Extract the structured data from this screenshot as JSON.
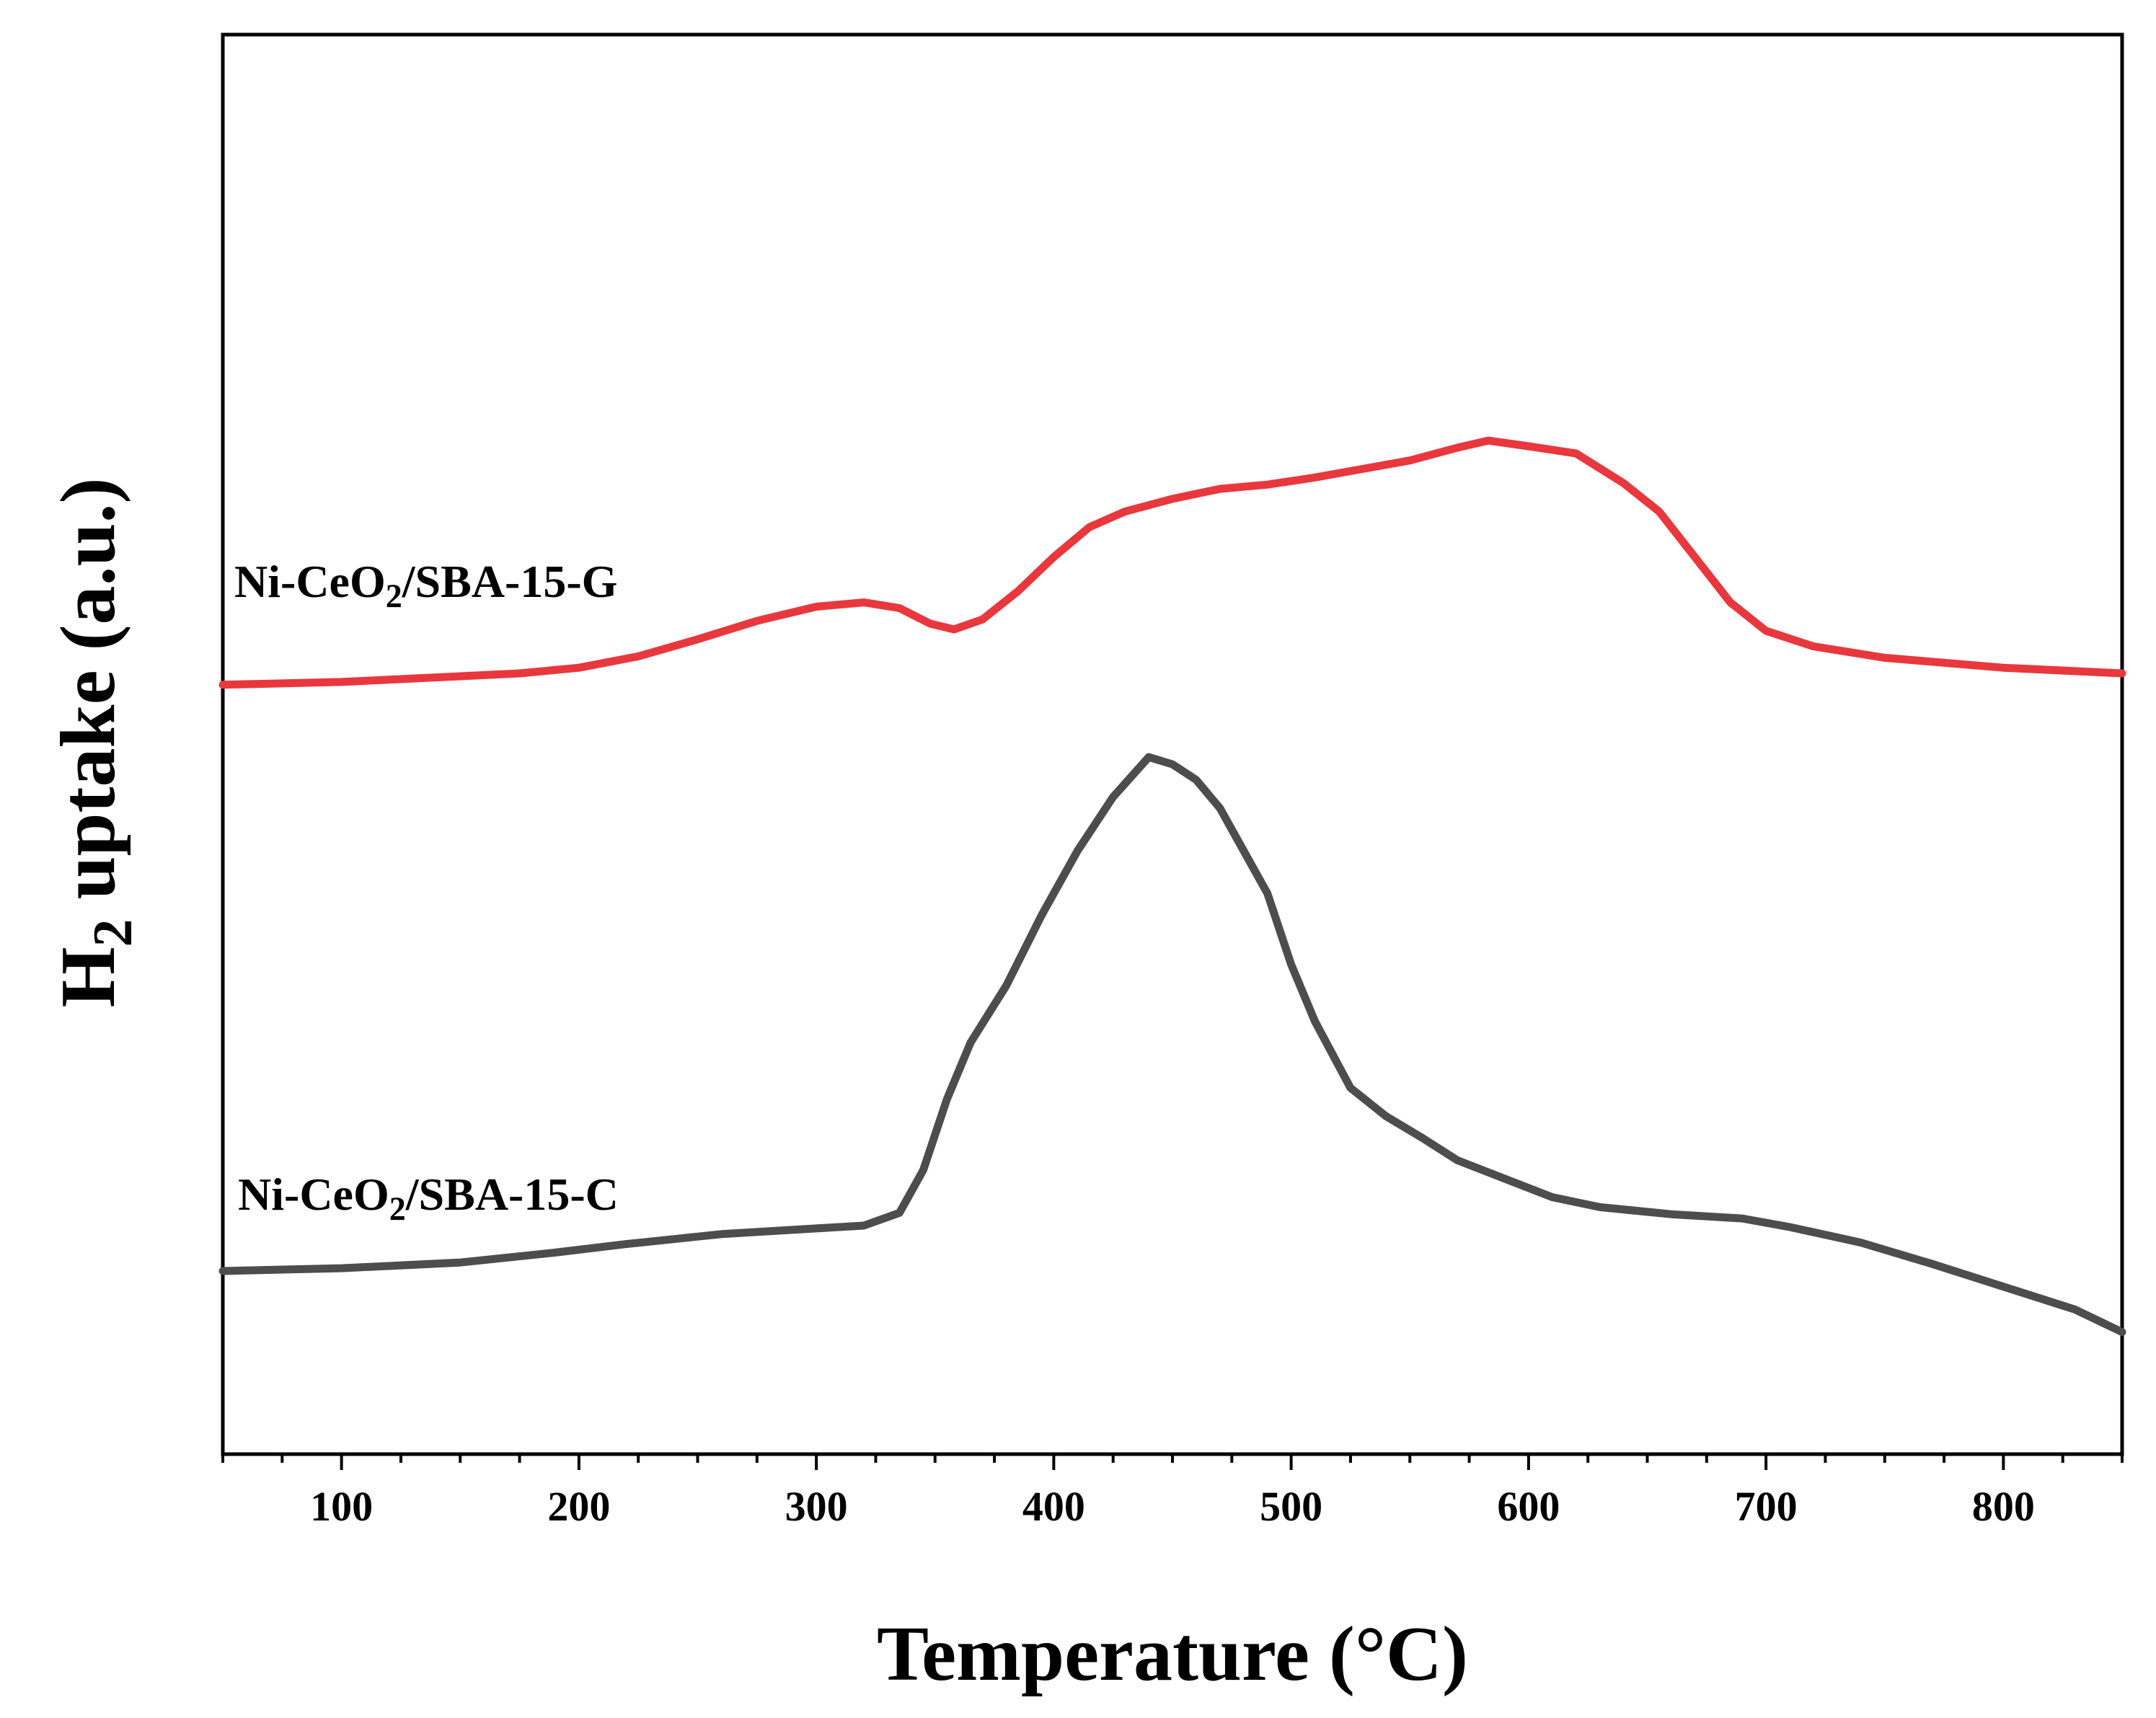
{
  "chart_data": {
    "type": "line",
    "title": "",
    "xlabel": "Temperature (°C)",
    "ylabel_parts": {
      "pre": "H",
      "sub": "2",
      "post": " uptake (a.u.)"
    },
    "xlim": [
      50,
      850
    ],
    "ylim": [
      0,
      100
    ],
    "x_ticks": [
      100,
      200,
      300,
      400,
      500,
      600,
      700,
      800
    ],
    "y_ticks_shown": false,
    "grid": false,
    "series": [
      {
        "name": "Ni-CeO2/SBA-15-G",
        "label_parts": {
          "pre": "Ni-CeO",
          "sub": "2",
          "post": "/SBA-15-G"
        },
        "color": "#e8383d",
        "points": [
          [
            50,
            54.2
          ],
          [
            100,
            54.4
          ],
          [
            150,
            54.8
          ],
          [
            175,
            55.0
          ],
          [
            200,
            55.4
          ],
          [
            225,
            56.2
          ],
          [
            250,
            57.4
          ],
          [
            275,
            58.7
          ],
          [
            300,
            59.7
          ],
          [
            320,
            60.0
          ],
          [
            335,
            59.6
          ],
          [
            348,
            58.5
          ],
          [
            358,
            58.1
          ],
          [
            370,
            58.8
          ],
          [
            385,
            60.8
          ],
          [
            400,
            63.2
          ],
          [
            415,
            65.3
          ],
          [
            430,
            66.4
          ],
          [
            450,
            67.3
          ],
          [
            470,
            68.0
          ],
          [
            490,
            68.3
          ],
          [
            510,
            68.8
          ],
          [
            530,
            69.4
          ],
          [
            550,
            70.0
          ],
          [
            570,
            70.9
          ],
          [
            583,
            71.4
          ],
          [
            600,
            71.0
          ],
          [
            620,
            70.5
          ],
          [
            640,
            68.4
          ],
          [
            655,
            66.4
          ],
          [
            670,
            63.2
          ],
          [
            685,
            60.0
          ],
          [
            700,
            58.0
          ],
          [
            720,
            56.9
          ],
          [
            750,
            56.1
          ],
          [
            800,
            55.4
          ],
          [
            850,
            55.0
          ]
        ]
      },
      {
        "name": "Ni-CeO2/SBA-15-C",
        "label_parts": {
          "pre": "Ni-CeO",
          "sub": "2",
          "post": "/SBA-15-C"
        },
        "color": "#4d4d4d",
        "points": [
          [
            50,
            12.9
          ],
          [
            100,
            13.1
          ],
          [
            150,
            13.5
          ],
          [
            190,
            14.2
          ],
          [
            220,
            14.8
          ],
          [
            260,
            15.5
          ],
          [
            300,
            15.9
          ],
          [
            320,
            16.1
          ],
          [
            335,
            17.0
          ],
          [
            345,
            20.0
          ],
          [
            355,
            25.0
          ],
          [
            365,
            29.0
          ],
          [
            380,
            33.0
          ],
          [
            395,
            38.0
          ],
          [
            410,
            42.5
          ],
          [
            425,
            46.3
          ],
          [
            440,
            49.1
          ],
          [
            450,
            48.6
          ],
          [
            460,
            47.5
          ],
          [
            470,
            45.5
          ],
          [
            480,
            42.5
          ],
          [
            490,
            39.5
          ],
          [
            500,
            34.5
          ],
          [
            510,
            30.5
          ],
          [
            525,
            25.8
          ],
          [
            540,
            23.8
          ],
          [
            555,
            22.3
          ],
          [
            570,
            20.7
          ],
          [
            590,
            19.4
          ],
          [
            610,
            18.1
          ],
          [
            630,
            17.4
          ],
          [
            660,
            16.9
          ],
          [
            690,
            16.6
          ],
          [
            710,
            16.0
          ],
          [
            740,
            14.9
          ],
          [
            770,
            13.4
          ],
          [
            800,
            11.8
          ],
          [
            830,
            10.2
          ],
          [
            850,
            8.6
          ]
        ]
      }
    ]
  }
}
